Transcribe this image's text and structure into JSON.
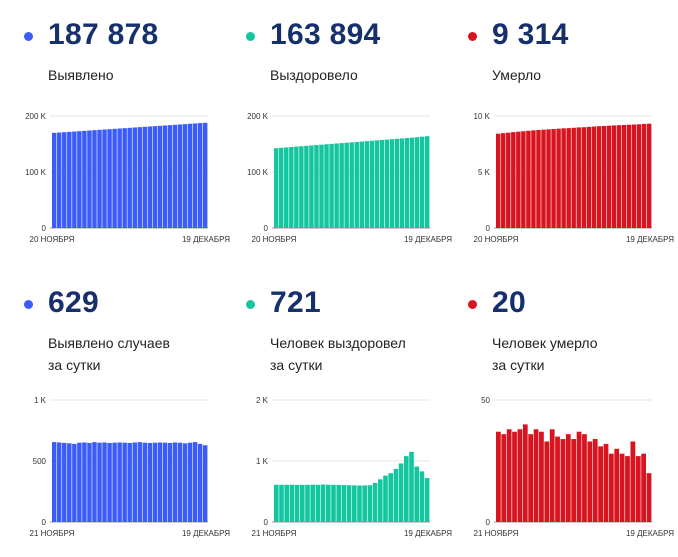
{
  "panels": [
    {
      "value": "187 878",
      "label_lines": [
        "Выявлено"
      ],
      "color": "#3b5bfb"
    },
    {
      "value": "163 894",
      "label_lines": [
        "Выздоровело"
      ],
      "color": "#13c6a0"
    },
    {
      "value": "9 314",
      "label_lines": [
        "Умерло"
      ],
      "color": "#d8141f"
    },
    {
      "value": "629",
      "label_lines": [
        "Выявлено случаев",
        "за сутки"
      ],
      "color": "#3b5bfb"
    },
    {
      "value": "721",
      "label_lines": [
        "Человек выздоровел",
        "за сутки"
      ],
      "color": "#13c6a0"
    },
    {
      "value": "20",
      "label_lines": [
        "Человек умерло",
        "за сутки"
      ],
      "color": "#d8141f"
    }
  ],
  "chart_data": [
    {
      "type": "bar",
      "color": "#3b5bfb",
      "yticks": [
        {
          "v": 200000,
          "t": "200 K"
        },
        {
          "v": 100000,
          "t": "100 K"
        },
        {
          "v": 0,
          "t": "0"
        }
      ],
      "ylim": [
        0,
        200000
      ],
      "xlabels": [
        "20 НОЯБРЯ",
        "19 ДЕКАБРЯ"
      ],
      "values": [
        169900,
        170500,
        171100,
        171700,
        172300,
        172900,
        173500,
        174100,
        174700,
        175300,
        175900,
        176500,
        177100,
        177700,
        178300,
        178900,
        179500,
        180100,
        180700,
        181300,
        181900,
        182500,
        183100,
        183700,
        184300,
        184900,
        185500,
        186100,
        186700,
        187300,
        187878
      ]
    },
    {
      "type": "bar",
      "color": "#13c6a0",
      "yticks": [
        {
          "v": 200000,
          "t": "200 K"
        },
        {
          "v": 100000,
          "t": "100 K"
        },
        {
          "v": 0,
          "t": "0"
        }
      ],
      "ylim": [
        0,
        200000
      ],
      "xlabels": [
        "20 НОЯБРЯ",
        "19 ДЕКАБРЯ"
      ],
      "values": [
        142500,
        143200,
        143900,
        144600,
        145300,
        146000,
        146700,
        147400,
        148100,
        148800,
        149500,
        150200,
        150900,
        151600,
        152300,
        153000,
        153700,
        154400,
        155100,
        155800,
        156500,
        157200,
        157900,
        158600,
        159300,
        160000,
        160700,
        161400,
        162100,
        163000,
        163894
      ]
    },
    {
      "type": "bar",
      "color": "#d8141f",
      "yticks": [
        {
          "v": 10000,
          "t": "10 K"
        },
        {
          "v": 5000,
          "t": "5 K"
        },
        {
          "v": 0,
          "t": "0"
        }
      ],
      "ylim": [
        0,
        10000
      ],
      "xlabels": [
        "20 НОЯБРЯ",
        "19 ДЕКАБРЯ"
      ],
      "values": [
        8420,
        8470,
        8510,
        8560,
        8600,
        8640,
        8680,
        8720,
        8750,
        8780,
        8810,
        8840,
        8870,
        8900,
        8920,
        8950,
        8980,
        9000,
        9030,
        9060,
        9090,
        9110,
        9130,
        9160,
        9180,
        9200,
        9220,
        9240,
        9260,
        9294,
        9314
      ]
    },
    {
      "type": "bar",
      "color": "#3b5bfb",
      "yticks": [
        {
          "v": 1000,
          "t": "1 K"
        },
        {
          "v": 500,
          "t": "500"
        },
        {
          "v": 0,
          "t": "0"
        }
      ],
      "ylim": [
        0,
        1000
      ],
      "xlabels": [
        "21 НОЯБРЯ",
        "19 ДЕКАБРЯ"
      ],
      "values": [
        655,
        652,
        648,
        645,
        640,
        650,
        652,
        648,
        655,
        650,
        652,
        648,
        650,
        652,
        650,
        648,
        652,
        655,
        650,
        648,
        650,
        652,
        650,
        648,
        652,
        650,
        645,
        650,
        655,
        640,
        629
      ]
    },
    {
      "type": "bar",
      "color": "#13c6a0",
      "yticks": [
        {
          "v": 2000,
          "t": "2 K"
        },
        {
          "v": 1000,
          "t": "1 K"
        },
        {
          "v": 0,
          "t": "0"
        }
      ],
      "ylim": [
        0,
        2000
      ],
      "xlabels": [
        "21 НОЯБРЯ",
        "19 ДЕКАБРЯ"
      ],
      "values": [
        610,
        610,
        610,
        610,
        608,
        610,
        610,
        612,
        610,
        615,
        612,
        610,
        608,
        605,
        603,
        600,
        598,
        600,
        602,
        640,
        700,
        760,
        800,
        870,
        960,
        1080,
        1150,
        910,
        830,
        721
      ]
    },
    {
      "type": "bar",
      "color": "#d8141f",
      "yticks": [
        {
          "v": 50,
          "t": "50"
        },
        {
          "v": 0,
          "t": "0"
        }
      ],
      "ylim": [
        0,
        50
      ],
      "xlabels": [
        "21 НОЯБРЯ",
        "19 ДЕКАБРЯ"
      ],
      "values": [
        37,
        36,
        38,
        37,
        38,
        40,
        36,
        38,
        37,
        33,
        38,
        35,
        34,
        36,
        34,
        37,
        36,
        33,
        34,
        31,
        32,
        28,
        30,
        28,
        27,
        33,
        27,
        28,
        20
      ]
    }
  ]
}
